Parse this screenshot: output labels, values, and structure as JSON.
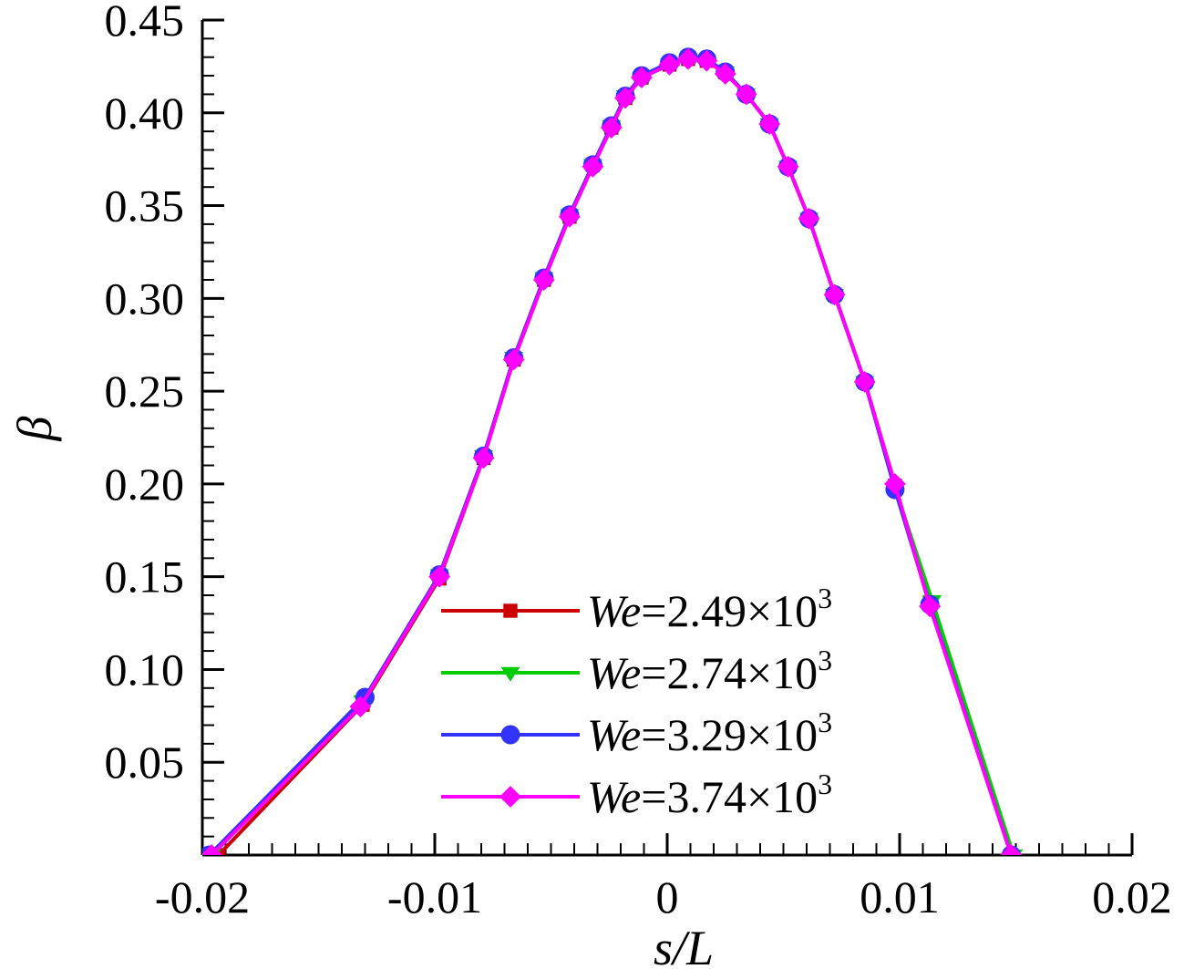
{
  "chart_data": {
    "type": "line",
    "xlabel": "s/L",
    "ylabel": "β",
    "xlim": [
      -0.02,
      0.02
    ],
    "ylim": [
      0,
      0.45
    ],
    "xticks": [
      "-0.02",
      "-0.01",
      "0",
      "0.01",
      "0.02"
    ],
    "yticks": [
      "0.05",
      "0.10",
      "0.15",
      "0.20",
      "0.25",
      "0.30",
      "0.35",
      "0.40",
      "0.45"
    ],
    "legend_position": "bottom-center",
    "series": [
      {
        "name": "We=2.49×10³",
        "name_parts": {
          "var": "We",
          "eq": "=2.49×10",
          "exp": "3"
        },
        "color": "#cc0000",
        "marker": "square",
        "x": [
          -0.0193,
          -0.0131,
          -0.0098,
          -0.0079,
          -0.0066,
          -0.0053,
          -0.0042,
          -0.0032,
          -0.0024,
          -0.0018,
          -0.0011,
          0.0001,
          0.0009,
          0.0017,
          0.0025,
          0.0034,
          0.0044,
          0.0052,
          0.0061,
          0.0072,
          0.0085,
          0.0098,
          0.0113,
          0.0148
        ],
        "y": [
          0.0,
          0.081,
          0.149,
          0.214,
          0.267,
          0.31,
          0.344,
          0.372,
          0.392,
          0.408,
          0.419,
          0.426,
          0.429,
          0.428,
          0.422,
          0.41,
          0.394,
          0.371,
          0.343,
          0.302,
          0.255,
          0.199,
          0.136,
          0.0
        ]
      },
      {
        "name": "We=2.74×10³",
        "name_parts": {
          "var": "We",
          "eq": "=2.74×10",
          "exp": "3"
        },
        "color": "#00cc00",
        "marker": "triangle-down",
        "x": [
          -0.0196,
          -0.0131,
          -0.0098,
          -0.0079,
          -0.0066,
          -0.0053,
          -0.0042,
          -0.0032,
          -0.0024,
          -0.0018,
          -0.0011,
          0.0001,
          0.0009,
          0.0017,
          0.0025,
          0.0034,
          0.0044,
          0.0052,
          0.0061,
          0.0072,
          0.0085,
          0.0098,
          0.0114,
          0.0149
        ],
        "y": [
          0.0,
          0.083,
          0.151,
          0.215,
          0.268,
          0.311,
          0.345,
          0.372,
          0.393,
          0.409,
          0.419,
          0.426,
          0.429,
          0.428,
          0.422,
          0.41,
          0.394,
          0.371,
          0.343,
          0.302,
          0.255,
          0.198,
          0.137,
          0.0
        ]
      },
      {
        "name": "We=3.29×10³",
        "name_parts": {
          "var": "We",
          "eq": "=3.29×10",
          "exp": "3"
        },
        "color": "#3333ff",
        "marker": "circle",
        "x": [
          -0.0197,
          -0.013,
          -0.0098,
          -0.0079,
          -0.0066,
          -0.0053,
          -0.0042,
          -0.0032,
          -0.0024,
          -0.0018,
          -0.0011,
          0.0001,
          0.0009,
          0.0017,
          0.0025,
          0.0034,
          0.0044,
          0.0052,
          0.0061,
          0.0072,
          0.0085,
          0.0098,
          0.0113,
          0.0148
        ],
        "y": [
          0.0,
          0.085,
          0.151,
          0.215,
          0.268,
          0.311,
          0.345,
          0.372,
          0.393,
          0.409,
          0.42,
          0.427,
          0.43,
          0.429,
          0.422,
          0.41,
          0.394,
          0.371,
          0.343,
          0.302,
          0.255,
          0.197,
          0.135,
          0.0
        ]
      },
      {
        "name": "We=3.74×10³",
        "name_parts": {
          "var": "We",
          "eq": "=3.74×10",
          "exp": "3"
        },
        "color": "#ff00ff",
        "marker": "diamond",
        "x": [
          -0.0196,
          -0.0132,
          -0.0098,
          -0.0079,
          -0.0066,
          -0.0053,
          -0.0042,
          -0.0032,
          -0.0024,
          -0.0018,
          -0.0011,
          0.0001,
          0.0009,
          0.0017,
          0.0025,
          0.0034,
          0.0044,
          0.0052,
          0.0061,
          0.0072,
          0.0085,
          0.0098,
          0.0113,
          0.0148
        ],
        "y": [
          0.0,
          0.08,
          0.15,
          0.214,
          0.267,
          0.31,
          0.344,
          0.371,
          0.392,
          0.408,
          0.419,
          0.426,
          0.429,
          0.428,
          0.421,
          0.41,
          0.394,
          0.371,
          0.343,
          0.302,
          0.255,
          0.2,
          0.134,
          0.0
        ]
      }
    ]
  }
}
